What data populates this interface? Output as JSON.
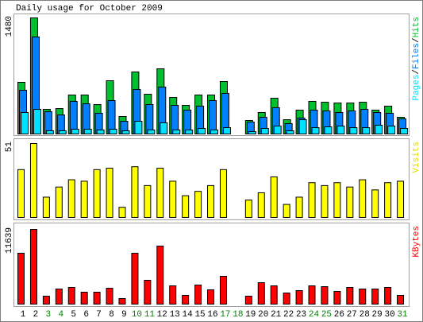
{
  "chart_data": [
    {
      "type": "bar",
      "title": "Daily usage for October 2009",
      "categories": [
        "1",
        "2",
        "3",
        "4",
        "5",
        "6",
        "7",
        "8",
        "9",
        "10",
        "11",
        "12",
        "13",
        "14",
        "15",
        "16",
        "17",
        "18",
        "19",
        "20",
        "21",
        "22",
        "23",
        "24",
        "25",
        "26",
        "27",
        "28",
        "29",
        "30",
        "31"
      ],
      "category_colors": [
        "#000000",
        "#000000",
        "#008000",
        "#008000",
        "#000000",
        "#000000",
        "#000000",
        "#000000",
        "#000000",
        "#008000",
        "#008000",
        "#000000",
        "#000000",
        "#000000",
        "#000000",
        "#000000",
        "#008000",
        "#008000",
        "#000000",
        "#000000",
        "#000000",
        "#000000",
        "#000000",
        "#008000",
        "#008000",
        "#000000",
        "#000000",
        "#000000",
        "#000000",
        "#000000",
        "#008000"
      ],
      "legend_separator": "/",
      "series": [
        {
          "name": "Pages",
          "color": "#00e0ff",
          "values": [
            274,
            314,
            41,
            41,
            61,
            61,
            51,
            61,
            41,
            162,
            51,
            142,
            51,
            51,
            71,
            51,
            81,
            0,
            30,
            71,
            101,
            41,
            182,
            81,
            91,
            101,
            81,
            81,
            112,
            101,
            71
          ]
        },
        {
          "name": "Files",
          "color": "#0080ff",
          "values": [
            557,
            1237,
            284,
            243,
            416,
            385,
            264,
            426,
            162,
            568,
            375,
            598,
            365,
            304,
            355,
            426,
            517,
            0,
            152,
            213,
            335,
            132,
            203,
            304,
            294,
            274,
            294,
            314,
            274,
            264,
            193
          ]
        },
        {
          "name": "Hits",
          "color": "#00c030",
          "values": [
            659,
            1480,
            314,
            324,
            497,
            497,
            375,
            679,
            223,
            791,
            507,
            831,
            466,
            365,
            497,
            497,
            669,
            0,
            172,
            274,
            456,
            182,
            304,
            416,
            405,
            395,
            395,
            405,
            304,
            355,
            213
          ]
        }
      ],
      "ylim": [
        0,
        1480
      ],
      "yticks": [
        1480
      ]
    },
    {
      "type": "bar",
      "series": [
        {
          "name": "Visits",
          "color": "#ffff00",
          "values": [
            33,
            51,
            14,
            21,
            26,
            25,
            33,
            34,
            7,
            35,
            22,
            34,
            25,
            15,
            18,
            22,
            33,
            0,
            12,
            17,
            28,
            9,
            14,
            24,
            22,
            24,
            21,
            26,
            19,
            24,
            25
          ]
        }
      ],
      "ylim": [
        0,
        51
      ],
      "yticks": [
        51
      ]
    },
    {
      "type": "bar",
      "series": [
        {
          "name": "KBytes",
          "color": "#ff0000",
          "values": [
            7925,
            11639,
            1238,
            2353,
            2600,
            1857,
            1857,
            2476,
            867,
            7925,
            3715,
            9039,
            2848,
            1362,
            2972,
            2229,
            4334,
            0,
            1238,
            3343,
            2848,
            1733,
            2105,
            2848,
            2724,
            1981,
            2600,
            2353,
            2353,
            2600,
            1362
          ]
        }
      ],
      "ylim": [
        0,
        11639
      ],
      "yticks": [
        11639
      ]
    }
  ]
}
